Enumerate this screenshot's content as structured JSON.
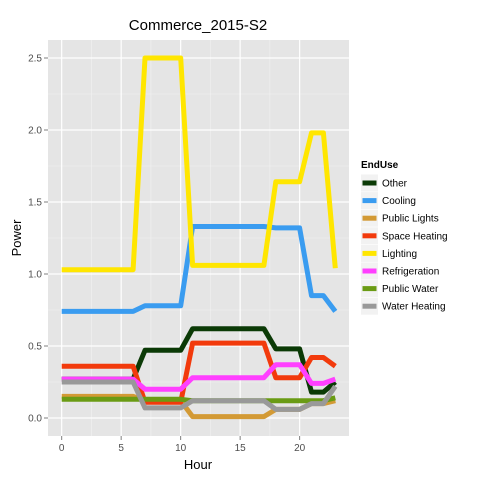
{
  "chart_data": {
    "type": "line",
    "title": "Commerce_2015-S2",
    "xlabel": "Hour",
    "ylabel": "Power",
    "xlim": [
      -1.15,
      24.15
    ],
    "ylim": [
      -0.125,
      2.625
    ],
    "xticks": [
      0,
      5,
      10,
      15,
      20
    ],
    "xtick_labels": [
      "0",
      "5",
      "10",
      "15",
      "20"
    ],
    "yticks": [
      0,
      0.5,
      1,
      1.5,
      2,
      2.5
    ],
    "ytick_labels": [
      "0.0",
      "0.5",
      "1.0",
      "1.5",
      "2.0",
      "2.5"
    ],
    "grid": true,
    "panel_background": "#e5e5e5",
    "grid_color": "#ffffff",
    "legend_title": "EndUse",
    "legend_position": "right",
    "x": [
      0,
      1,
      2,
      3,
      4,
      5,
      6,
      7,
      8,
      9,
      10,
      11,
      12,
      13,
      14,
      15,
      16,
      17,
      18,
      19,
      20,
      21,
      22,
      23
    ],
    "series": [
      {
        "name": "Other",
        "color": "#0b3a06",
        "values": [
          0.27,
          0.27,
          0.27,
          0.27,
          0.27,
          0.27,
          0.27,
          0.47,
          0.47,
          0.47,
          0.47,
          0.62,
          0.62,
          0.62,
          0.62,
          0.62,
          0.62,
          0.62,
          0.48,
          0.48,
          0.48,
          0.18,
          0.18,
          0.25
        ]
      },
      {
        "name": "Cooling",
        "color": "#3a9cf0",
        "values": [
          0.74,
          0.74,
          0.74,
          0.74,
          0.74,
          0.74,
          0.74,
          0.78,
          0.78,
          0.78,
          0.78,
          1.33,
          1.33,
          1.33,
          1.33,
          1.33,
          1.33,
          1.33,
          1.32,
          1.32,
          1.32,
          0.85,
          0.85,
          0.74
        ]
      },
      {
        "name": "Public Lights",
        "color": "#d39a35",
        "values": [
          0.15,
          0.15,
          0.15,
          0.15,
          0.15,
          0.15,
          0.15,
          0.12,
          0.12,
          0.12,
          0.12,
          0.01,
          0.01,
          0.01,
          0.01,
          0.01,
          0.01,
          0.01,
          0.06,
          0.06,
          0.06,
          0.1,
          0.1,
          0.12
        ]
      },
      {
        "name": "Space Heating",
        "color": "#f23a0c",
        "values": [
          0.36,
          0.36,
          0.36,
          0.36,
          0.36,
          0.36,
          0.36,
          0.11,
          0.11,
          0.11,
          0.11,
          0.52,
          0.52,
          0.52,
          0.52,
          0.52,
          0.52,
          0.52,
          0.28,
          0.28,
          0.28,
          0.42,
          0.42,
          0.36
        ]
      },
      {
        "name": "Lighting",
        "color": "#ffe600",
        "values": [
          1.03,
          1.03,
          1.03,
          1.03,
          1.03,
          1.03,
          1.03,
          2.5,
          2.5,
          2.5,
          2.5,
          1.06,
          1.06,
          1.06,
          1.06,
          1.06,
          1.06,
          1.06,
          1.64,
          1.64,
          1.64,
          1.98,
          1.98,
          1.04
        ]
      },
      {
        "name": "Refrigeration",
        "color": "#ff40ff",
        "values": [
          0.27,
          0.27,
          0.27,
          0.27,
          0.27,
          0.27,
          0.27,
          0.2,
          0.2,
          0.2,
          0.2,
          0.28,
          0.28,
          0.28,
          0.28,
          0.28,
          0.28,
          0.28,
          0.37,
          0.37,
          0.37,
          0.24,
          0.24,
          0.27
        ]
      },
      {
        "name": "Public Water",
        "color": "#6a9b14",
        "values": [
          0.13,
          0.13,
          0.13,
          0.13,
          0.13,
          0.13,
          0.13,
          0.13,
          0.13,
          0.13,
          0.13,
          0.12,
          0.12,
          0.12,
          0.12,
          0.12,
          0.12,
          0.12,
          0.12,
          0.12,
          0.12,
          0.12,
          0.12,
          0.14
        ]
      },
      {
        "name": "Water Heating",
        "color": "#999999",
        "values": [
          0.25,
          0.25,
          0.25,
          0.25,
          0.25,
          0.25,
          0.25,
          0.07,
          0.07,
          0.07,
          0.07,
          0.12,
          0.12,
          0.12,
          0.12,
          0.12,
          0.12,
          0.12,
          0.06,
          0.06,
          0.06,
          0.1,
          0.1,
          0.22
        ]
      }
    ]
  }
}
